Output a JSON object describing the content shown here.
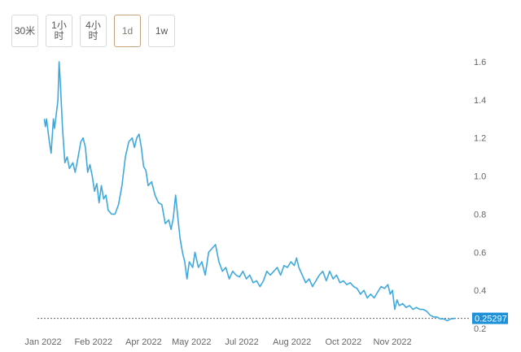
{
  "toolbar": {
    "buttons": [
      {
        "label": "30米",
        "active": false
      },
      {
        "label": "1小时",
        "active": false
      },
      {
        "label": "4小时",
        "active": false
      },
      {
        "label": "1d",
        "active": true
      },
      {
        "label": "1w",
        "active": false
      }
    ]
  },
  "colors": {
    "line": "#3fa9de",
    "tag_bg": "#1e90d8",
    "dotted": "#666666"
  },
  "chart_data": {
    "type": "line",
    "title": "",
    "xlabel": "",
    "ylabel": "",
    "xlim": [
      "2021-12-27",
      "2022-12-30"
    ],
    "ylim": [
      0.2,
      1.6
    ],
    "x_ticks": [
      "Jan 2022",
      "Feb 2022",
      "Apr 2022",
      "May 2022",
      "Jul 2022",
      "Aug 2022",
      "Oct 2022",
      "Nov 2022"
    ],
    "x_tick_dates": [
      "2022-01-01",
      "2022-02-14",
      "2022-03-30",
      "2022-05-11",
      "2022-06-24",
      "2022-08-07",
      "2022-09-21",
      "2022-11-03"
    ],
    "y_ticks": [
      0.2,
      0.4,
      0.6,
      0.8,
      1.0,
      1.2,
      1.4,
      1.6
    ],
    "y_tick_labels": [
      "0.2",
      "0.4",
      "0.6",
      "0.8",
      "1.0",
      "1.2",
      "1.4",
      "1.6"
    ],
    "y_axis_position": "right",
    "grid": false,
    "legend": "none",
    "current_price": 0.25297,
    "current_price_label": "0.25297",
    "series": [
      {
        "values": [
          [
            "2022-01-02",
            1.3
          ],
          [
            "2022-01-03",
            1.26
          ],
          [
            "2022-01-04",
            1.3
          ],
          [
            "2022-01-06",
            1.2
          ],
          [
            "2022-01-08",
            1.12
          ],
          [
            "2022-01-10",
            1.3
          ],
          [
            "2022-01-11",
            1.25
          ],
          [
            "2022-01-12",
            1.3
          ],
          [
            "2022-01-14",
            1.4
          ],
          [
            "2022-01-15",
            1.6
          ],
          [
            "2022-01-16",
            1.5
          ],
          [
            "2022-01-18",
            1.25
          ],
          [
            "2022-01-20",
            1.07
          ],
          [
            "2022-01-22",
            1.1
          ],
          [
            "2022-01-24",
            1.04
          ],
          [
            "2022-01-27",
            1.07
          ],
          [
            "2022-01-29",
            1.02
          ],
          [
            "2022-01-31",
            1.08
          ],
          [
            "2022-02-03",
            1.18
          ],
          [
            "2022-02-05",
            1.2
          ],
          [
            "2022-02-07",
            1.15
          ],
          [
            "2022-02-09",
            1.02
          ],
          [
            "2022-02-11",
            1.06
          ],
          [
            "2022-02-13",
            1.0
          ],
          [
            "2022-02-15",
            0.92
          ],
          [
            "2022-02-17",
            0.96
          ],
          [
            "2022-02-19",
            0.86
          ],
          [
            "2022-02-21",
            0.95
          ],
          [
            "2022-02-23",
            0.88
          ],
          [
            "2022-02-25",
            0.9
          ],
          [
            "2022-02-27",
            0.82
          ],
          [
            "2022-03-02",
            0.8
          ],
          [
            "2022-03-05",
            0.8
          ],
          [
            "2022-03-08",
            0.85
          ],
          [
            "2022-03-11",
            0.95
          ],
          [
            "2022-03-14",
            1.1
          ],
          [
            "2022-03-17",
            1.18
          ],
          [
            "2022-03-20",
            1.2
          ],
          [
            "2022-03-22",
            1.15
          ],
          [
            "2022-03-24",
            1.2
          ],
          [
            "2022-03-26",
            1.22
          ],
          [
            "2022-03-28",
            1.15
          ],
          [
            "2022-03-30",
            1.05
          ],
          [
            "2022-04-01",
            1.03
          ],
          [
            "2022-04-03",
            0.95
          ],
          [
            "2022-04-06",
            0.97
          ],
          [
            "2022-04-09",
            0.9
          ],
          [
            "2022-04-12",
            0.86
          ],
          [
            "2022-04-15",
            0.85
          ],
          [
            "2022-04-18",
            0.75
          ],
          [
            "2022-04-21",
            0.77
          ],
          [
            "2022-04-23",
            0.72
          ],
          [
            "2022-04-25",
            0.78
          ],
          [
            "2022-04-27",
            0.9
          ],
          [
            "2022-04-29",
            0.78
          ],
          [
            "2022-05-01",
            0.67
          ],
          [
            "2022-05-03",
            0.6
          ],
          [
            "2022-05-05",
            0.55
          ],
          [
            "2022-05-07",
            0.46
          ],
          [
            "2022-05-09",
            0.55
          ],
          [
            "2022-05-12",
            0.52
          ],
          [
            "2022-05-14",
            0.6
          ],
          [
            "2022-05-17",
            0.52
          ],
          [
            "2022-05-20",
            0.55
          ],
          [
            "2022-05-23",
            0.48
          ],
          [
            "2022-05-26",
            0.6
          ],
          [
            "2022-05-29",
            0.62
          ],
          [
            "2022-06-01",
            0.64
          ],
          [
            "2022-06-04",
            0.55
          ],
          [
            "2022-06-07",
            0.5
          ],
          [
            "2022-06-10",
            0.52
          ],
          [
            "2022-06-13",
            0.46
          ],
          [
            "2022-06-16",
            0.5
          ],
          [
            "2022-06-19",
            0.48
          ],
          [
            "2022-06-22",
            0.47
          ],
          [
            "2022-06-25",
            0.5
          ],
          [
            "2022-06-28",
            0.46
          ],
          [
            "2022-07-01",
            0.48
          ],
          [
            "2022-07-04",
            0.44
          ],
          [
            "2022-07-07",
            0.45
          ],
          [
            "2022-07-10",
            0.42
          ],
          [
            "2022-07-13",
            0.45
          ],
          [
            "2022-07-16",
            0.5
          ],
          [
            "2022-07-19",
            0.48
          ],
          [
            "2022-07-22",
            0.5
          ],
          [
            "2022-07-25",
            0.52
          ],
          [
            "2022-07-28",
            0.48
          ],
          [
            "2022-07-31",
            0.53
          ],
          [
            "2022-08-03",
            0.52
          ],
          [
            "2022-08-06",
            0.55
          ],
          [
            "2022-08-09",
            0.53
          ],
          [
            "2022-08-11",
            0.57
          ],
          [
            "2022-08-13",
            0.52
          ],
          [
            "2022-08-16",
            0.48
          ],
          [
            "2022-08-19",
            0.44
          ],
          [
            "2022-08-22",
            0.46
          ],
          [
            "2022-08-25",
            0.42
          ],
          [
            "2022-08-28",
            0.45
          ],
          [
            "2022-08-31",
            0.48
          ],
          [
            "2022-09-03",
            0.5
          ],
          [
            "2022-09-06",
            0.45
          ],
          [
            "2022-09-09",
            0.5
          ],
          [
            "2022-09-12",
            0.46
          ],
          [
            "2022-09-15",
            0.48
          ],
          [
            "2022-09-18",
            0.44
          ],
          [
            "2022-09-21",
            0.45
          ],
          [
            "2022-09-24",
            0.43
          ],
          [
            "2022-09-27",
            0.44
          ],
          [
            "2022-09-30",
            0.42
          ],
          [
            "2022-10-03",
            0.41
          ],
          [
            "2022-10-06",
            0.38
          ],
          [
            "2022-10-09",
            0.4
          ],
          [
            "2022-10-12",
            0.36
          ],
          [
            "2022-10-15",
            0.38
          ],
          [
            "2022-10-18",
            0.36
          ],
          [
            "2022-10-21",
            0.39
          ],
          [
            "2022-10-24",
            0.42
          ],
          [
            "2022-10-27",
            0.41
          ],
          [
            "2022-10-30",
            0.43
          ],
          [
            "2022-11-01",
            0.38
          ],
          [
            "2022-11-03",
            0.4
          ],
          [
            "2022-11-05",
            0.3
          ],
          [
            "2022-11-07",
            0.35
          ],
          [
            "2022-11-09",
            0.32
          ],
          [
            "2022-11-12",
            0.33
          ],
          [
            "2022-11-15",
            0.31
          ],
          [
            "2022-11-18",
            0.32
          ],
          [
            "2022-11-21",
            0.3
          ],
          [
            "2022-11-24",
            0.31
          ],
          [
            "2022-11-27",
            0.3
          ],
          [
            "2022-11-30",
            0.3
          ],
          [
            "2022-12-03",
            0.29
          ],
          [
            "2022-12-06",
            0.27
          ],
          [
            "2022-12-09",
            0.26
          ],
          [
            "2022-12-12",
            0.26
          ],
          [
            "2022-12-15",
            0.25
          ],
          [
            "2022-12-18",
            0.25
          ],
          [
            "2022-12-21",
            0.24
          ],
          [
            "2022-12-24",
            0.25
          ],
          [
            "2022-12-28",
            0.253
          ]
        ]
      }
    ]
  }
}
